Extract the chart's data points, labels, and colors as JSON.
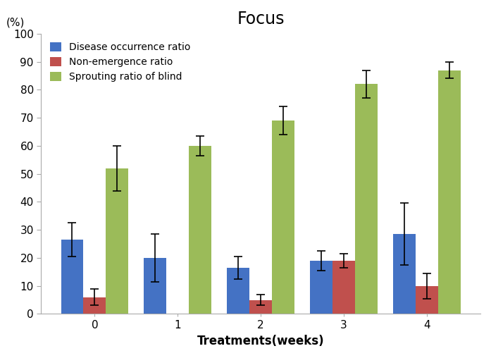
{
  "title": "Focus",
  "unit_label": "(%)",
  "xlabel": "Treatments(weeks)",
  "categories": [
    "0",
    "1",
    "2",
    "3",
    "4"
  ],
  "series": [
    {
      "label": "Disease occurrence ratio",
      "color": "#4472C4",
      "values": [
        26.5,
        20.0,
        16.5,
        19.0,
        28.5
      ],
      "errors": [
        6.0,
        8.5,
        4.0,
        3.5,
        11.0
      ]
    },
    {
      "label": "Non-emergence ratio",
      "color": "#C0504D",
      "values": [
        6.0,
        0.0,
        5.0,
        19.0,
        10.0
      ],
      "errors": [
        3.0,
        0.0,
        2.0,
        2.5,
        4.5
      ]
    },
    {
      "label": "Sprouting ratio of blind",
      "color": "#9BBB59",
      "values": [
        52.0,
        60.0,
        69.0,
        82.0,
        87.0
      ],
      "errors": [
        8.0,
        3.5,
        5.0,
        5.0,
        3.0
      ]
    }
  ],
  "ylim": [
    0,
    100
  ],
  "yticks": [
    0,
    10,
    20,
    30,
    40,
    50,
    60,
    70,
    80,
    90,
    100
  ],
  "bar_width": 0.27,
  "background_color": "#ffffff",
  "title_fontsize": 17,
  "xlabel_fontsize": 12,
  "tick_fontsize": 11,
  "legend_fontsize": 10
}
